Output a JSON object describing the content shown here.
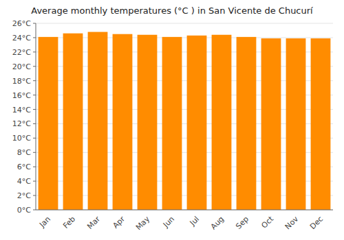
{
  "chart_data": {
    "type": "bar",
    "title": "Average monthly temperatures (°C ) in San Vicente de Chucurí",
    "categories": [
      "Jan",
      "Feb",
      "Mar",
      "Apr",
      "May",
      "Jun",
      "Jul",
      "Aug",
      "Sep",
      "Oct",
      "Nov",
      "Dec"
    ],
    "values": [
      24.1,
      24.6,
      24.8,
      24.5,
      24.4,
      24.1,
      24.3,
      24.4,
      24.1,
      23.9,
      23.9,
      23.9
    ],
    "color": "#FF8C00",
    "ylim": [
      0,
      26
    ],
    "yticks": [
      {
        "value": 0,
        "label": "0°C"
      },
      {
        "value": 2,
        "label": "2°C"
      },
      {
        "value": 4,
        "label": "4°C"
      },
      {
        "value": 6,
        "label": "6°C"
      },
      {
        "value": 8,
        "label": "8°C"
      },
      {
        "value": 10,
        "label": "10°C"
      },
      {
        "value": 12,
        "label": "12°C"
      },
      {
        "value": 14,
        "label": "14°C"
      },
      {
        "value": 16,
        "label": "16°C"
      },
      {
        "value": 18,
        "label": "18°C"
      },
      {
        "value": 20,
        "label": "20°C"
      },
      {
        "value": 22,
        "label": "22°C"
      },
      {
        "value": 24,
        "label": "24°C"
      },
      {
        "value": 26,
        "label": "26°C"
      }
    ],
    "grid": true
  }
}
